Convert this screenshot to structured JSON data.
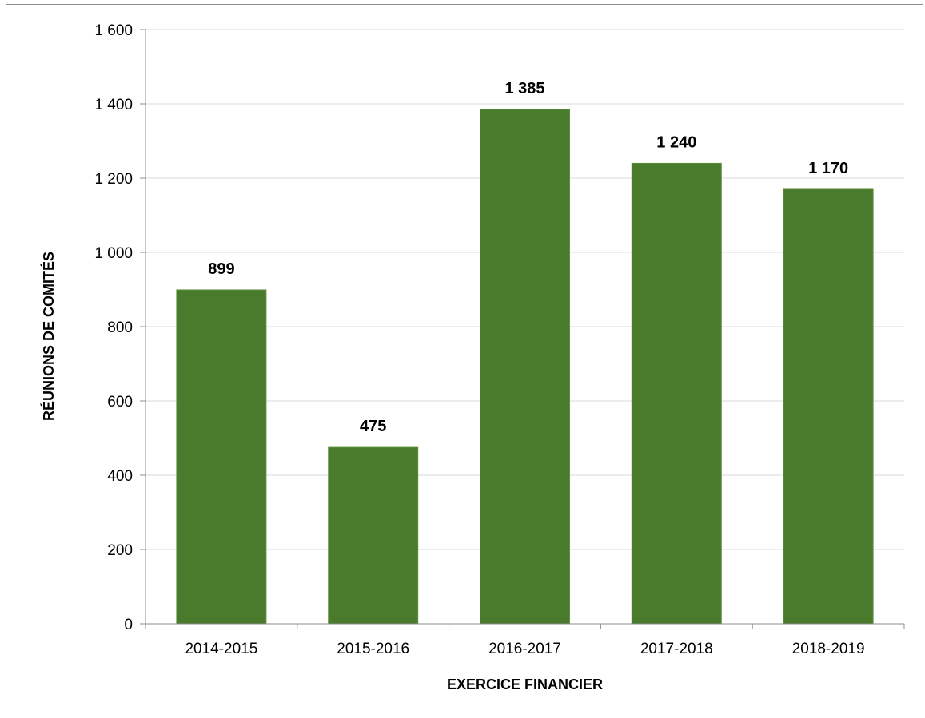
{
  "chart_data": {
    "type": "bar",
    "title": "",
    "xlabel": "EXERCICE FINANCIER",
    "ylabel": "RÉUNIONS DE COMITÉS",
    "categories": [
      "2014-2015",
      "2015-2016",
      "2016-2017",
      "2017-2018",
      "2018-2019"
    ],
    "values": [
      899,
      475,
      1385,
      1240,
      1170
    ],
    "value_labels": [
      "899",
      "475",
      "1 385",
      "1 240",
      "1 170"
    ],
    "ylim": [
      0,
      1600
    ],
    "yticks": [
      0,
      200,
      400,
      600,
      800,
      1000,
      1200,
      1400,
      1600
    ],
    "ytick_labels": [
      "0",
      "200",
      "400",
      "600",
      "800",
      "1 000",
      "1 200",
      "1 400",
      "1 600"
    ],
    "grid": true,
    "legend": "none",
    "bar_color": "#4a7b2c",
    "grid_color": "#d9d9d9",
    "axis_color": "#8c8c8c"
  }
}
